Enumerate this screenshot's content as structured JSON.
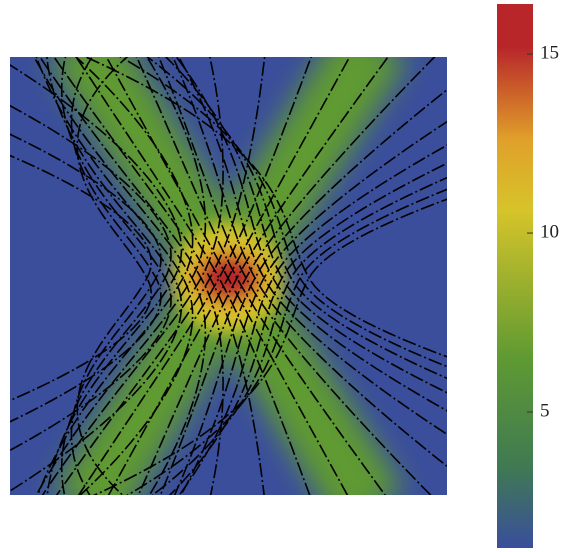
{
  "chart_data": {
    "type": "field",
    "clim": [
      1.2,
      16.4
    ],
    "cticks": [
      5,
      10,
      15
    ],
    "colors": [
      "#3a4e9c",
      "#3f7a52",
      "#5f9a32",
      "#d6c42a",
      "#e0a02a",
      "#b8262a"
    ]
  }
}
